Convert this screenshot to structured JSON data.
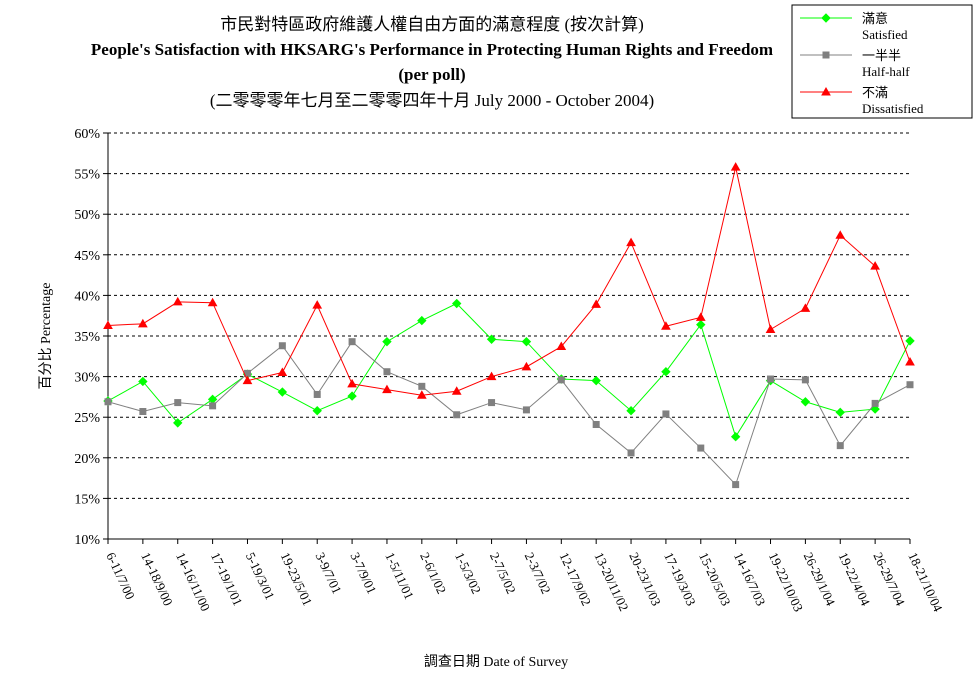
{
  "chart_data": {
    "type": "line",
    "title_lines": [
      "市民對特區政府維護人權自由方面的滿意程度 (按次計算)",
      "People's Satisfaction with HKSARG's Performance in Protecting Human Rights and Freedom",
      "(per poll)",
      "(二零零零年七月至二零零四年十月 July 2000 -  October 2004)"
    ],
    "xlabel": "調查日期 Date of Survey",
    "ylabel": "百分比 Percentage",
    "ylim": [
      10,
      60
    ],
    "y_ticks": [
      "10%",
      "15%",
      "20%",
      "25%",
      "30%",
      "35%",
      "40%",
      "45%",
      "50%",
      "55%",
      "60%"
    ],
    "grid": "horizontal-dashed",
    "legend_position": "top-right",
    "categories": [
      "6-11/7/00",
      "14-18/9/00",
      "14-16/11/00",
      "17-19/1/01",
      "5-19/3/01",
      "19-23/5/01",
      "3-9/7/01",
      "3-7/9/01",
      "1-5/11/01",
      "2-6/1/02",
      "1-5/3/02",
      "2-7/5/02",
      "2-3/7/02",
      "12-17/9/02",
      "13-20/11/02",
      "20-23/1/03",
      "17-19/3/03",
      "15-20/5/03",
      "14-16/7/03",
      "19-22/10/03",
      "26-29/1/04",
      "19-22/4/04",
      "26-29/7/04",
      "18-21/10/04"
    ],
    "series": [
      {
        "name": "滿意",
        "name_en": "Satisfied",
        "color": "#00ff00",
        "marker": "diamond",
        "values": [
          27.0,
          29.4,
          24.3,
          27.2,
          30.3,
          28.1,
          25.8,
          27.6,
          34.3,
          36.9,
          39.0,
          34.6,
          34.3,
          29.7,
          29.5,
          25.8,
          30.6,
          36.4,
          22.6,
          29.5,
          26.9,
          25.6,
          26.0,
          34.4
        ]
      },
      {
        "name": "一半半",
        "name_en": "Half-half",
        "color": "#808080",
        "marker": "square",
        "values": [
          26.9,
          25.7,
          26.8,
          26.4,
          30.4,
          33.8,
          27.8,
          34.3,
          30.6,
          28.8,
          25.3,
          26.8,
          25.9,
          29.6,
          24.1,
          20.6,
          25.4,
          21.2,
          16.7,
          29.7,
          29.6,
          21.5,
          26.7,
          29.0
        ]
      },
      {
        "name": "不滿",
        "name_en": "Dissatisfied",
        "color": "#ff0000",
        "marker": "triangle",
        "values": [
          36.3,
          36.5,
          39.2,
          39.1,
          29.5,
          30.5,
          38.8,
          29.1,
          28.4,
          27.7,
          28.2,
          30.0,
          31.2,
          33.7,
          38.9,
          46.5,
          36.2,
          37.3,
          55.8,
          35.8,
          38.4,
          47.4,
          43.6,
          31.8
        ]
      }
    ]
  }
}
